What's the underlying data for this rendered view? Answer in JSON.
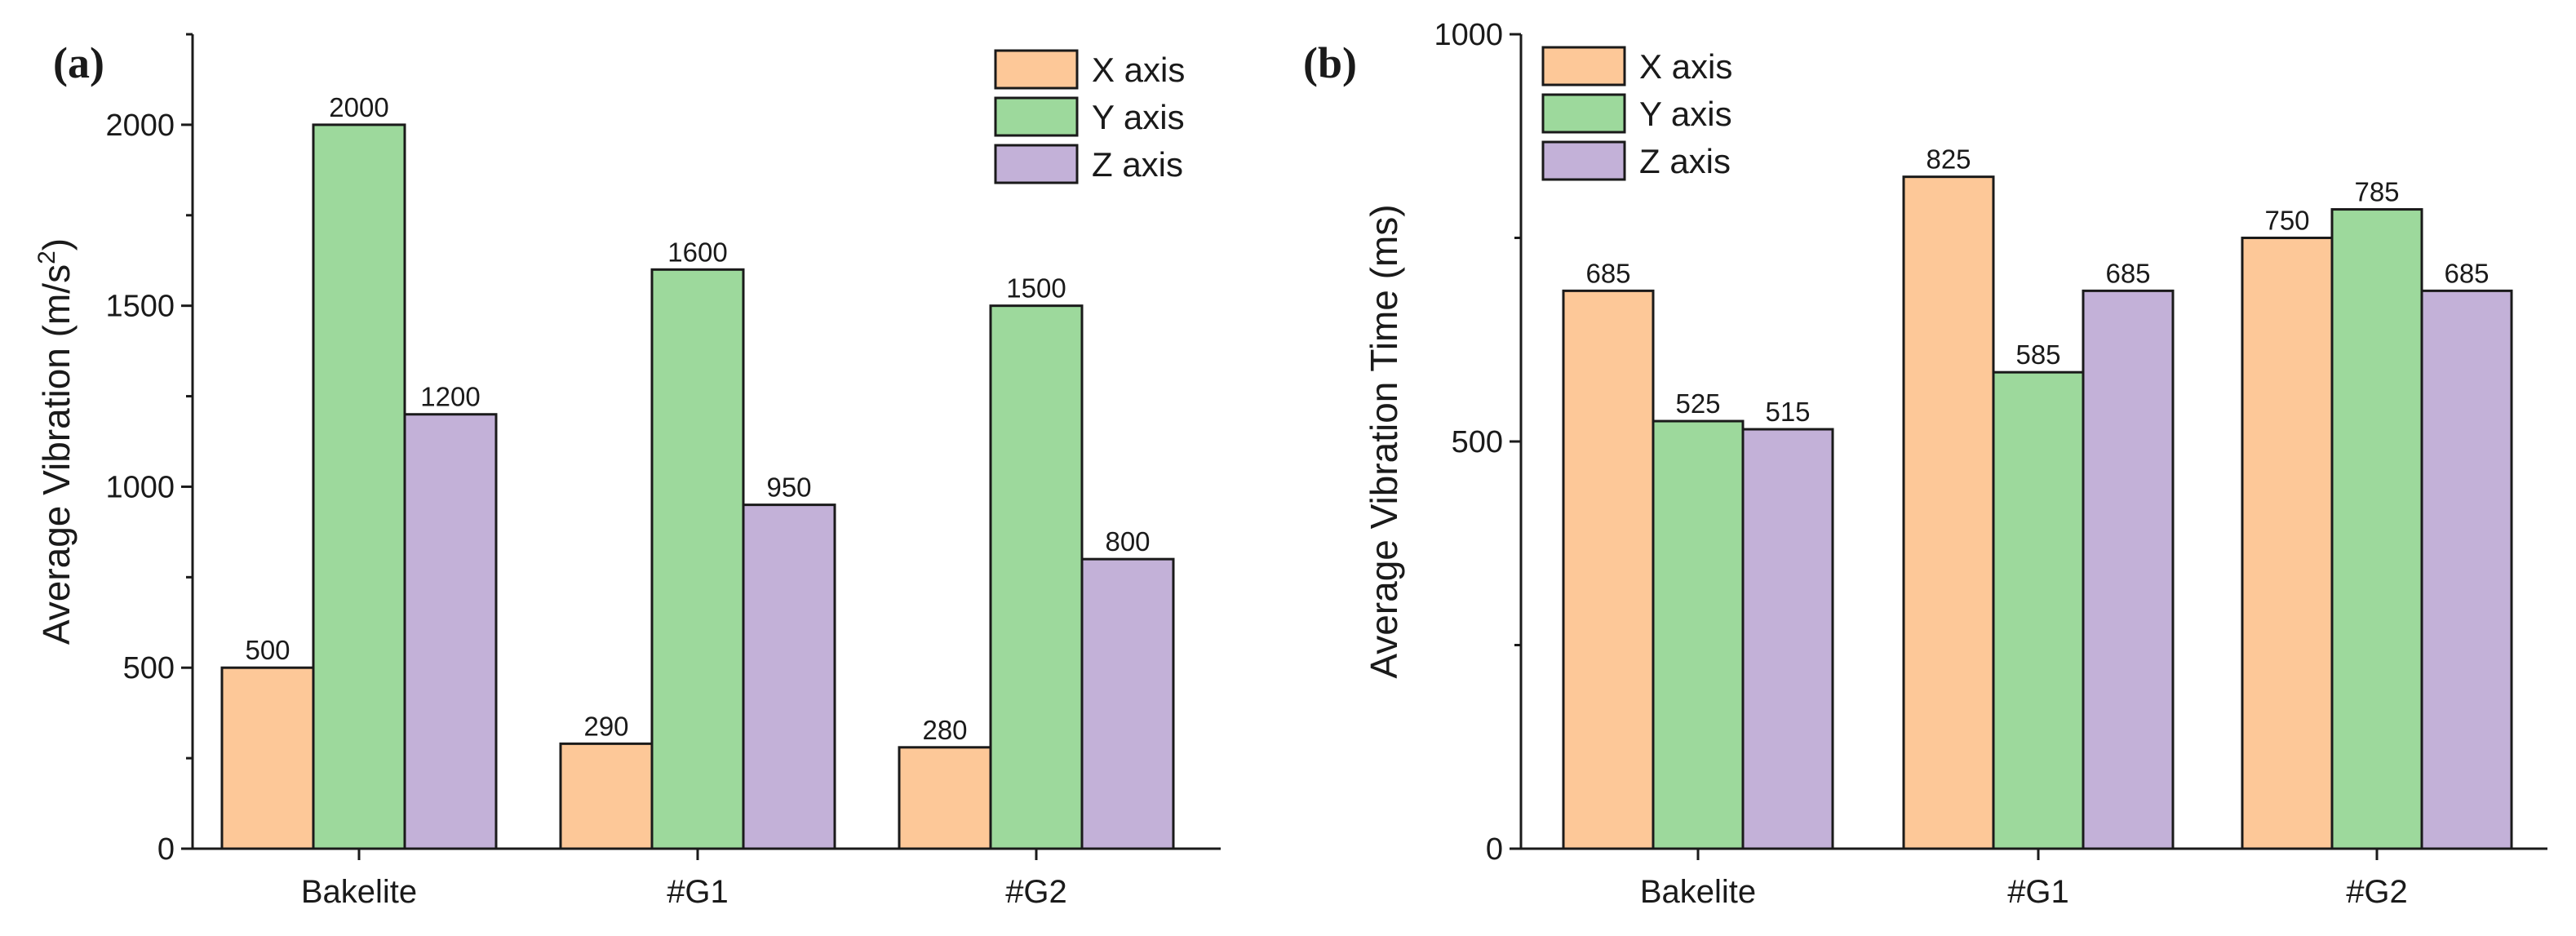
{
  "colors": {
    "x_axis": "#fdc898",
    "y_axis": "#9dd99c",
    "z_axis": "#c3b1d8"
  },
  "chart_data": [
    {
      "type": "bar",
      "panel": "(a)",
      "categories": [
        "Bakelite",
        "#G1",
        "#G2"
      ],
      "series": [
        {
          "name": "X axis",
          "color_key": "x_axis",
          "values": [
            500,
            290,
            280
          ]
        },
        {
          "name": "Y axis",
          "color_key": "y_axis",
          "values": [
            2000,
            1600,
            1500
          ]
        },
        {
          "name": "Z axis",
          "color_key": "z_axis",
          "values": [
            1200,
            950,
            800
          ]
        }
      ],
      "value_labels": [
        [
          "500",
          "290",
          "280"
        ],
        [
          "2000",
          "1600",
          "1500"
        ],
        [
          "1200",
          "950",
          "800"
        ]
      ],
      "ylabel_main": "Average Vibration (m/s",
      "ylabel_sup": "2",
      "ylabel_close": ")",
      "ylim": [
        0,
        2250
      ],
      "yticks": [
        0,
        500,
        1000,
        1500,
        2000
      ],
      "ytick_labels": [
        "0",
        "500",
        "1000",
        "1500",
        "2000"
      ],
      "legend_position": "top-right"
    },
    {
      "type": "bar",
      "panel": "(b)",
      "categories": [
        "Bakelite",
        "#G1",
        "#G2"
      ],
      "series": [
        {
          "name": "X axis",
          "color_key": "x_axis",
          "values": [
            685,
            825,
            750
          ]
        },
        {
          "name": "Y axis",
          "color_key": "y_axis",
          "values": [
            525,
            585,
            785
          ]
        },
        {
          "name": "Z axis",
          "color_key": "z_axis",
          "values": [
            515,
            685,
            685
          ]
        }
      ],
      "value_labels": [
        [
          "685",
          "825",
          "750"
        ],
        [
          "525",
          "585",
          "785"
        ],
        [
          "515",
          "685",
          "685"
        ]
      ],
      "ylabel_main": "Average Vibration Time (ms)",
      "ylabel_sup": "",
      "ylabel_close": "",
      "ylim": [
        0,
        1000
      ],
      "yticks": [
        0,
        500,
        1000
      ],
      "ytick_labels": [
        "0",
        "500",
        "1000"
      ],
      "legend_position": "top-left"
    }
  ]
}
